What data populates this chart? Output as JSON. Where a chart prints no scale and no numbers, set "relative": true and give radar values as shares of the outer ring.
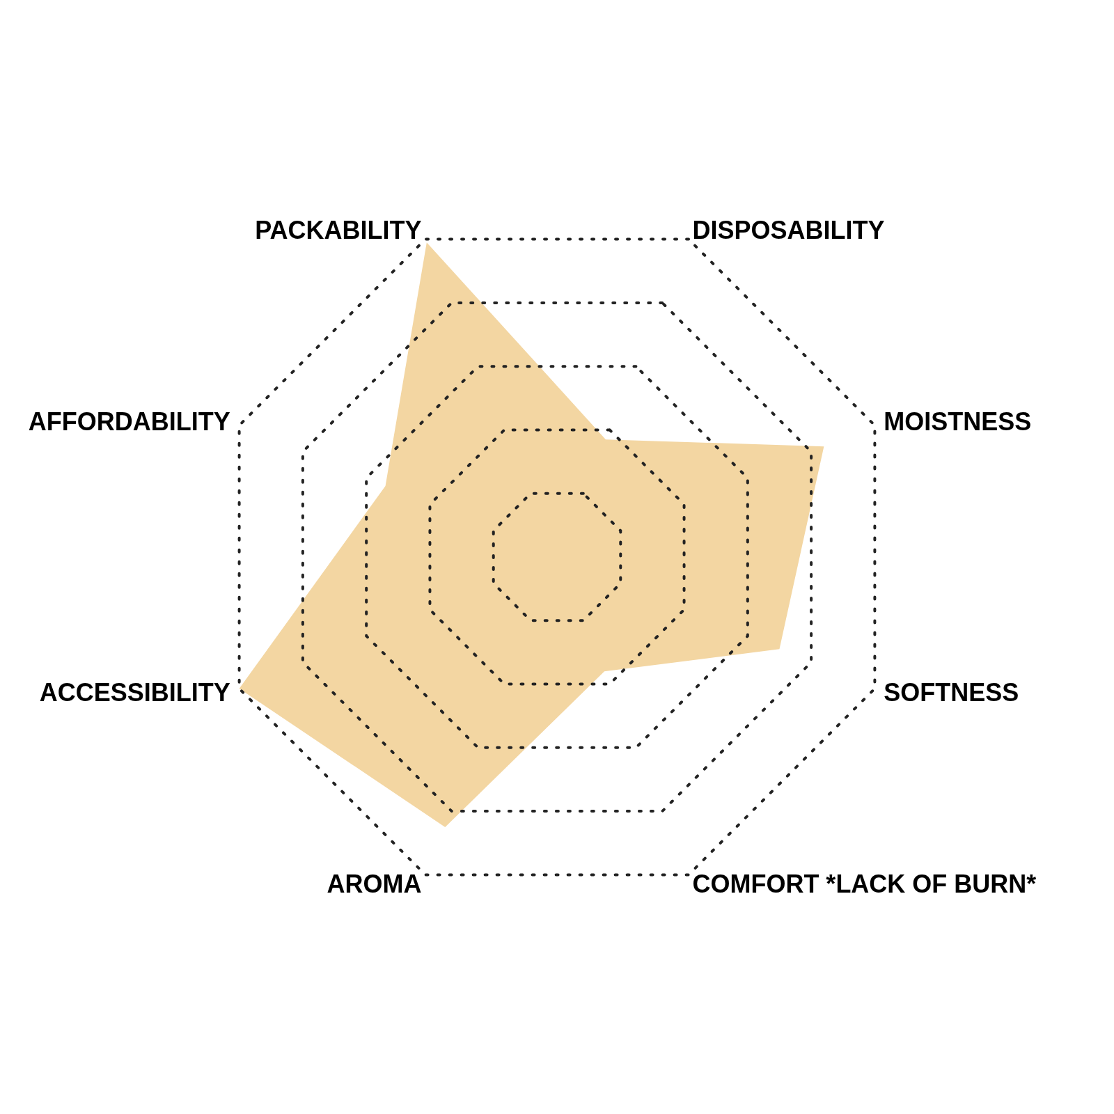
{
  "chart_data": {
    "type": "radar",
    "relative": true,
    "categories": [
      "DISPOSABILITY",
      "MOISTNESS",
      "SOFTNESS",
      "COMFORT *LACK OF BURN*",
      "AROMA",
      "ACCESSIBILITY",
      "AFFORDABILITY",
      "PACKABILITY"
    ],
    "series": [
      {
        "color": "#f3d6a2",
        "values": [
          0.37,
          0.84,
          0.7,
          0.36,
          0.85,
          1,
          0.54,
          0.99
        ]
      }
    ],
    "grid": true,
    "marker": "none"
  }
}
